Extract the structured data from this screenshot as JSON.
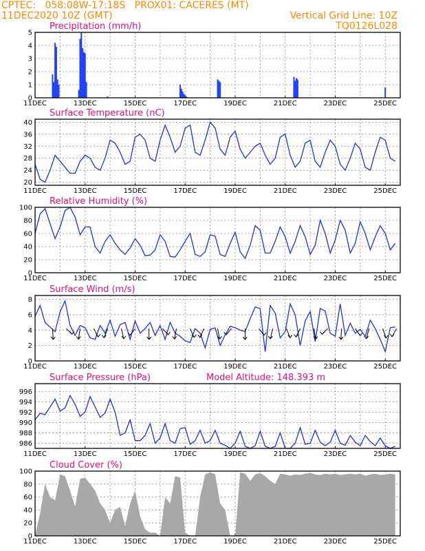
{
  "header": {
    "line1_left": "CPTEC:   058:08W-17:18S   PROX01: CACERES (MT)",
    "line2_left": "11DEC2020 10Z (GMT)",
    "line2_right": "Vertical Grid Line: 10Z",
    "line3_right": "TQ0126L028"
  },
  "chart_data": [
    {
      "type": "bar",
      "title": "Precipitation   (mm/h)",
      "x_labels": [
        "11DEC",
        "13DEC",
        "15DEC",
        "17DEC",
        "19DEC",
        "21DEC",
        "23DEC",
        "25DEC"
      ],
      "ylim": [
        0,
        5
      ],
      "yticks": [
        "0",
        "1",
        "2",
        "3",
        "4",
        "5"
      ],
      "grid": true,
      "x_days": [
        0.7,
        0.75,
        0.8,
        0.85,
        0.9,
        0.95,
        1.75,
        1.8,
        1.85,
        1.9,
        1.95,
        2.0,
        2.05,
        2.9,
        5.8,
        5.85,
        5.9,
        5.95,
        6.0,
        6.05,
        7.3,
        7.35,
        7.4,
        10.35,
        10.4,
        10.45,
        10.5,
        14.0
      ],
      "values": [
        1.8,
        1.2,
        4.2,
        3.9,
        1.4,
        1.0,
        0.6,
        4.5,
        5.0,
        3.8,
        3.5,
        3.4,
        1.2,
        0.1,
        1.0,
        0.7,
        0.5,
        0.3,
        0.2,
        0.1,
        1.4,
        1.3,
        1.2,
        1.6,
        1.3,
        1.5,
        1.4,
        0.8
      ]
    },
    {
      "type": "line",
      "title": "Surface Temperature   (nC)",
      "x_labels": [
        "11DEC",
        "13DEC",
        "15DEC",
        "17DEC",
        "19DEC",
        "21DEC",
        "23DEC",
        "25DEC"
      ],
      "ylim": [
        19,
        41
      ],
      "yticks": [
        "20",
        "24",
        "28",
        "32",
        "36",
        "40"
      ],
      "grid": true,
      "x_days": [
        0,
        0.2,
        0.4,
        0.6,
        0.8,
        1.0,
        1.2,
        1.4,
        1.6,
        1.8,
        2.0,
        2.2,
        2.4,
        2.6,
        2.8,
        3.0,
        3.2,
        3.4,
        3.6,
        3.8,
        4.0,
        4.2,
        4.4,
        4.6,
        4.8,
        5.0,
        5.2,
        5.4,
        5.6,
        5.8,
        6.0,
        6.2,
        6.4,
        6.6,
        6.8,
        7.0,
        7.2,
        7.4,
        7.6,
        7.8,
        8.0,
        8.2,
        8.4,
        8.6,
        8.8,
        9.0,
        9.2,
        9.4,
        9.6,
        9.8,
        10.0,
        10.2,
        10.4,
        10.6,
        10.8,
        11.0,
        11.2,
        11.4,
        11.6,
        11.8,
        12.0,
        12.2,
        12.4,
        12.6,
        12.8,
        13.0,
        13.2,
        13.4,
        13.6,
        13.8,
        14.0,
        14.2,
        14.4
      ],
      "values": [
        26,
        21,
        20,
        24,
        29,
        27,
        25,
        23,
        23,
        27,
        29,
        28,
        25,
        24,
        28,
        34,
        33,
        30,
        26,
        27,
        35,
        36,
        34,
        28,
        27,
        34,
        39,
        35,
        30,
        32,
        38,
        39,
        30,
        29,
        34,
        40,
        38,
        31,
        29,
        35,
        37,
        31,
        28,
        30,
        32,
        33,
        29,
        26,
        28,
        35,
        36,
        29,
        25,
        27,
        33,
        34,
        27,
        25,
        30,
        34,
        32,
        26,
        24,
        28,
        33,
        31,
        25,
        24,
        30,
        35,
        34,
        28,
        27
      ]
    },
    {
      "type": "line",
      "title": "Relative Humidity   (%)",
      "x_labels": [
        "11DEC",
        "13DEC",
        "15DEC",
        "17DEC",
        "19DEC",
        "21DEC",
        "23DEC",
        "25DEC"
      ],
      "ylim": [
        0,
        100
      ],
      "yticks": [
        "0",
        "20",
        "40",
        "60",
        "80",
        "100"
      ],
      "grid": true,
      "x_days": [
        0,
        0.2,
        0.4,
        0.6,
        0.8,
        1.0,
        1.2,
        1.4,
        1.6,
        1.8,
        2.0,
        2.2,
        2.4,
        2.6,
        2.8,
        3.0,
        3.2,
        3.4,
        3.6,
        3.8,
        4.0,
        4.2,
        4.4,
        4.6,
        4.8,
        5.0,
        5.2,
        5.4,
        5.6,
        5.8,
        6.0,
        6.2,
        6.4,
        6.6,
        6.8,
        7.0,
        7.2,
        7.4,
        7.6,
        7.8,
        8.0,
        8.2,
        8.4,
        8.6,
        8.8,
        9.0,
        9.2,
        9.4,
        9.6,
        9.8,
        10.0,
        10.2,
        10.4,
        10.6,
        10.8,
        11.0,
        11.2,
        11.4,
        11.6,
        11.8,
        12.0,
        12.2,
        12.4,
        12.6,
        12.8,
        13.0,
        13.2,
        13.4,
        13.6,
        13.8,
        14.0,
        14.2,
        14.4
      ],
      "values": [
        60,
        90,
        98,
        75,
        52,
        70,
        95,
        100,
        85,
        58,
        70,
        70,
        40,
        30,
        48,
        58,
        45,
        35,
        28,
        38,
        52,
        42,
        26,
        27,
        35,
        58,
        48,
        25,
        24,
        35,
        48,
        60,
        28,
        25,
        32,
        58,
        56,
        28,
        25,
        45,
        62,
        32,
        22,
        42,
        72,
        65,
        30,
        30,
        48,
        70,
        55,
        30,
        48,
        72,
        55,
        28,
        42,
        80,
        60,
        30,
        50,
        80,
        65,
        30,
        45,
        78,
        60,
        35,
        55,
        72,
        60,
        35,
        45
      ]
    },
    {
      "type": "line",
      "title": "Surface Wind   (m/s)",
      "x_labels": [
        "11DEC",
        "13DEC",
        "15DEC",
        "17DEC",
        "19DEC",
        "21DEC",
        "23DEC",
        "25DEC"
      ],
      "ylim": [
        0,
        8.5
      ],
      "yticks": [
        "0",
        "2",
        "4",
        "6",
        "8"
      ],
      "grid": true,
      "x_days": [
        0,
        0.2,
        0.4,
        0.6,
        0.8,
        1.0,
        1.2,
        1.4,
        1.6,
        1.8,
        2.0,
        2.2,
        2.4,
        2.6,
        2.8,
        3.0,
        3.2,
        3.4,
        3.6,
        3.8,
        4.0,
        4.2,
        4.4,
        4.6,
        4.8,
        5.0,
        5.2,
        5.4,
        5.6,
        5.8,
        6.0,
        6.2,
        6.4,
        6.6,
        6.8,
        7.0,
        7.2,
        7.4,
        7.6,
        7.8,
        8.0,
        8.2,
        8.4,
        8.6,
        8.8,
        9.0,
        9.2,
        9.4,
        9.6,
        9.8,
        10.0,
        10.2,
        10.4,
        10.6,
        10.8,
        11.0,
        11.2,
        11.4,
        11.6,
        11.8,
        12.0,
        12.2,
        12.4,
        12.6,
        12.8,
        13.0,
        13.2,
        13.4,
        13.6,
        13.8,
        14.0,
        14.2,
        14.4
      ],
      "values": [
        5.8,
        7.2,
        5.0,
        4.4,
        3.8,
        6.4,
        7.8,
        4.6,
        3.3,
        4.6,
        4.3,
        3.0,
        2.8,
        4.6,
        3.6,
        5.3,
        3.2,
        4.7,
        5.0,
        2.8,
        5.2,
        3.6,
        4.2,
        5.0,
        3.3,
        4.6,
        2.8,
        5.0,
        3.6,
        3.2,
        2.6,
        2.4,
        4.2,
        3.6,
        1.7,
        4.1,
        4.3,
        2.0,
        3.4,
        4.5,
        4.3,
        4.0,
        3.8,
        5.5,
        7.0,
        6.8,
        1.2,
        7.2,
        6.2,
        3.0,
        3.8,
        7.4,
        6.0,
        2.0,
        5.2,
        6.4,
        2.5,
        6.8,
        6.5,
        3.6,
        3.2,
        7.4,
        3.3,
        4.9,
        3.6,
        4.1,
        3.2,
        5.3,
        4.2,
        2.8,
        1.2,
        4.3,
        4.4
      ]
    },
    {
      "type": "line",
      "title": "Surface Pressure   (hPa)",
      "subtitle": "Model Altitude: 148.393 m",
      "x_labels": [
        "11DEC",
        "13DEC",
        "15DEC",
        "17DEC",
        "19DEC",
        "21DEC",
        "23DEC",
        "25DEC"
      ],
      "ylim": [
        985,
        997.5
      ],
      "yticks": [
        "986",
        "988",
        "990",
        "992",
        "994",
        "996"
      ],
      "grid": true,
      "x_days": [
        0,
        0.2,
        0.4,
        0.6,
        0.8,
        1.0,
        1.2,
        1.4,
        1.6,
        1.8,
        2.0,
        2.2,
        2.4,
        2.6,
        2.8,
        3.0,
        3.2,
        3.4,
        3.6,
        3.8,
        4.0,
        4.2,
        4.4,
        4.6,
        4.8,
        5.0,
        5.2,
        5.4,
        5.6,
        5.8,
        6.0,
        6.2,
        6.4,
        6.6,
        6.8,
        7.0,
        7.2,
        7.4,
        7.6,
        7.8,
        8.0,
        8.2,
        8.4,
        8.6,
        8.8,
        9.0,
        9.2,
        9.4,
        9.6,
        9.8,
        10.0,
        10.2,
        10.4,
        10.6,
        10.8,
        11.0,
        11.2,
        11.4,
        11.6,
        11.8,
        12.0,
        12.2,
        12.4,
        12.6,
        12.8,
        13.0,
        13.2,
        13.4,
        13.6,
        13.8,
        14.0,
        14.2,
        14.4
      ],
      "values": [
        990.5,
        991.8,
        991.5,
        993.0,
        994.5,
        992.2,
        992.8,
        995.2,
        993.5,
        991.2,
        992.0,
        995.0,
        993.0,
        991.0,
        991.8,
        994.5,
        992.0,
        987.5,
        988.0,
        990.5,
        986.5,
        986.5,
        987.5,
        989.8,
        986.0,
        987.0,
        989.8,
        986.5,
        986.0,
        988.8,
        989.0,
        985.8,
        986.5,
        988.5,
        986.0,
        986.5,
        988.5,
        986.0,
        985.6,
        985.0,
        986.0,
        988.3,
        985.4,
        985.0,
        985.5,
        988.3,
        985.4,
        984.8,
        985.4,
        988.0,
        985.0,
        985.0,
        986.0,
        989.0,
        985.8,
        986.0,
        988.5,
        986.2,
        985.5,
        986.2,
        988.5,
        986.0,
        985.6,
        987.5,
        986.2,
        985.5,
        987.5,
        986.3,
        985.5,
        987.0,
        985.5,
        985.0,
        985.4
      ]
    },
    {
      "type": "area",
      "title": "Cloud Cover   (%)",
      "x_labels": [
        "11DEC",
        "13DEC",
        "15DEC",
        "17DEC",
        "19DEC",
        "21DEC",
        "23DEC",
        "25DEC"
      ],
      "ylim": [
        0,
        100
      ],
      "yticks": [
        "0",
        "20",
        "40",
        "60",
        "80",
        "100"
      ],
      "grid": true,
      "x_days": [
        0,
        0.2,
        0.4,
        0.6,
        0.8,
        1.0,
        1.2,
        1.4,
        1.6,
        1.8,
        2.0,
        2.2,
        2.4,
        2.6,
        2.8,
        3.0,
        3.2,
        3.4,
        3.6,
        3.8,
        4.0,
        4.2,
        4.4,
        4.6,
        4.8,
        5.0,
        5.2,
        5.4,
        5.6,
        5.8,
        6.0,
        6.2,
        6.4,
        6.6,
        6.8,
        7.0,
        7.2,
        7.4,
        7.6,
        7.8,
        8.0,
        8.2,
        8.4,
        8.6,
        8.8,
        9.0,
        9.2,
        9.4,
        9.6,
        9.8,
        10.0,
        10.2,
        10.4,
        10.6,
        10.8,
        11.0,
        11.2,
        11.4,
        11.6,
        11.8,
        12.0,
        12.2,
        12.4,
        12.6,
        12.8,
        13.0,
        13.2,
        13.4,
        13.6,
        13.8,
        14.0,
        14.2,
        14.4
      ],
      "values": [
        0,
        35,
        80,
        60,
        55,
        95,
        92,
        70,
        45,
        88,
        90,
        80,
        70,
        50,
        40,
        20,
        40,
        45,
        15,
        50,
        70,
        30,
        10,
        5,
        5,
        0,
        60,
        50,
        92,
        90,
        5,
        0,
        0,
        60,
        95,
        98,
        95,
        50,
        40,
        0,
        0,
        98,
        96,
        85,
        95,
        97,
        92,
        85,
        80,
        96,
        95,
        93,
        95,
        94,
        96,
        97,
        95,
        94,
        96,
        95,
        96,
        94,
        95,
        96,
        95,
        96,
        93,
        95,
        96,
        94,
        95,
        96,
        95
      ]
    }
  ]
}
